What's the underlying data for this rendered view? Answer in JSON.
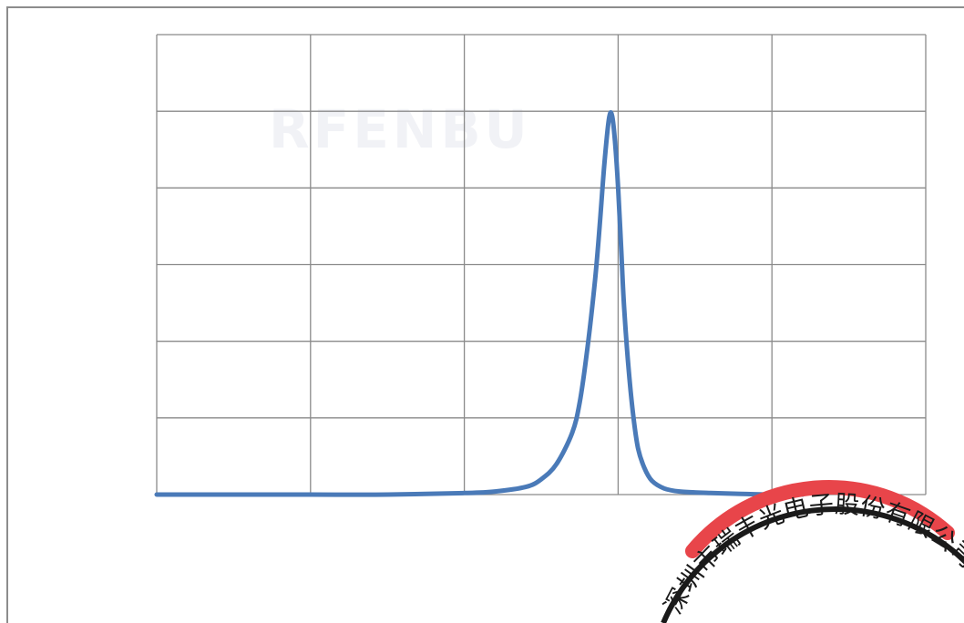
{
  "chart_data": {
    "type": "line",
    "title": "",
    "xlabel": "",
    "ylabel": "",
    "xlim": [
      0,
      5
    ],
    "ylim": [
      0,
      6
    ],
    "grid": true,
    "x_divisions": 5,
    "y_divisions": 6,
    "series": [
      {
        "color": "#4a7ab8",
        "x": [
          0.0,
          0.5,
          1.0,
          1.5,
          2.0,
          2.2,
          2.4,
          2.5,
          2.6,
          2.7,
          2.75,
          2.8,
          2.85,
          2.88,
          2.91,
          2.94,
          2.96,
          2.98,
          3.0,
          3.02,
          3.04,
          3.07,
          3.1,
          3.13,
          3.17,
          3.22,
          3.3,
          3.4,
          3.6,
          3.8,
          4.0,
          4.2
        ],
        "y": [
          0.0,
          0.0,
          0.0,
          0.0,
          0.02,
          0.04,
          0.1,
          0.2,
          0.4,
          0.8,
          1.2,
          1.9,
          2.8,
          3.5,
          4.3,
          4.9,
          4.95,
          4.6,
          4.0,
          3.2,
          2.4,
          1.6,
          1.0,
          0.6,
          0.35,
          0.18,
          0.08,
          0.04,
          0.02,
          0.01,
          0.0,
          0.0
        ]
      }
    ]
  },
  "watermark": {
    "text": "RFENBU"
  },
  "seal": {
    "text": "深圳市瑞丰光电子股份有限公司",
    "ring_color": "#1a1a1a",
    "accent_color": "#e8454a"
  }
}
